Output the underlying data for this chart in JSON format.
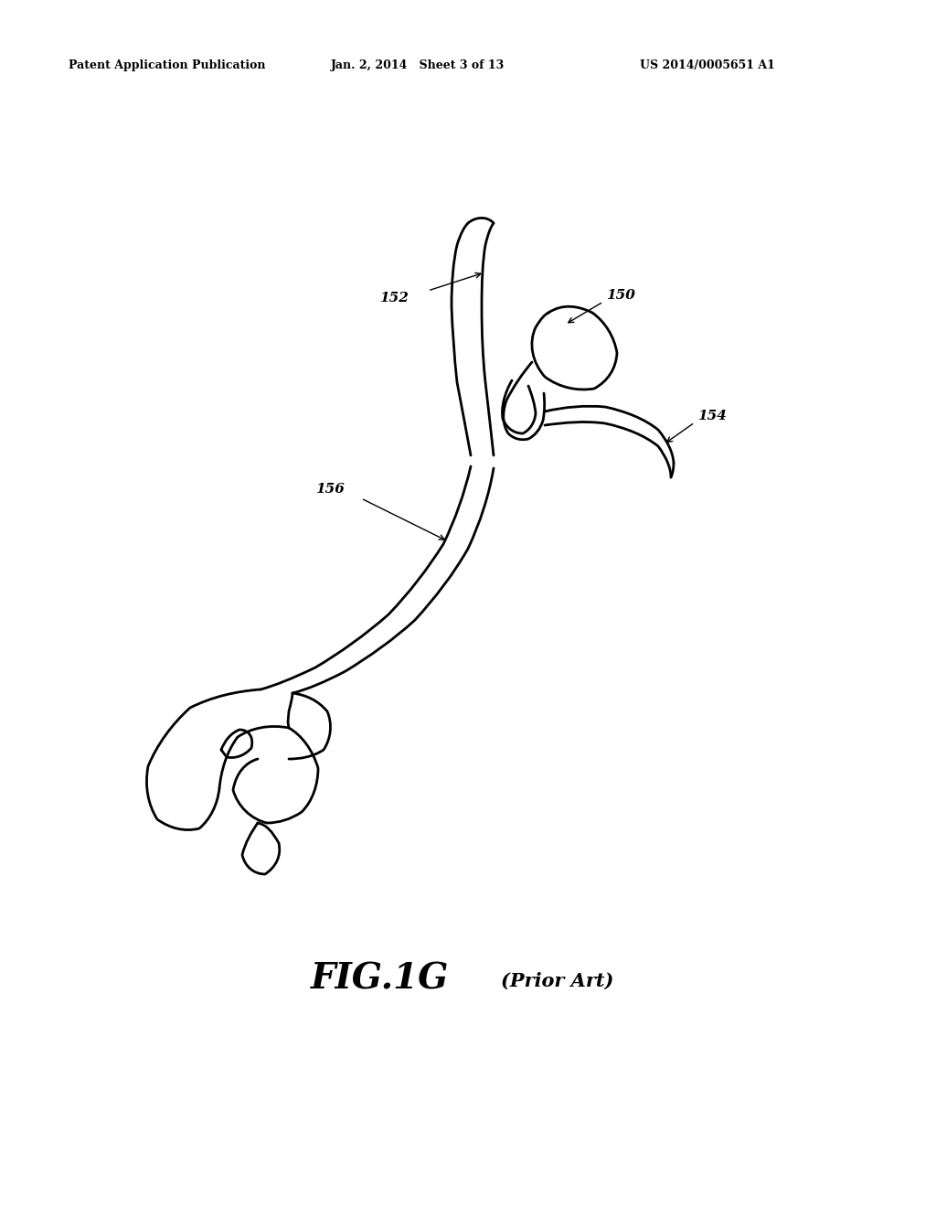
{
  "title_left": "Patent Application Publication",
  "title_mid": "Jan. 2, 2014   Sheet 3 of 13",
  "title_right": "US 2014/0005651 A1",
  "fig_label": "FIG.1G",
  "fig_sublabel": "(Prior Art)",
  "background_color": "#ffffff",
  "line_color": "#000000",
  "linewidth": 2.0
}
